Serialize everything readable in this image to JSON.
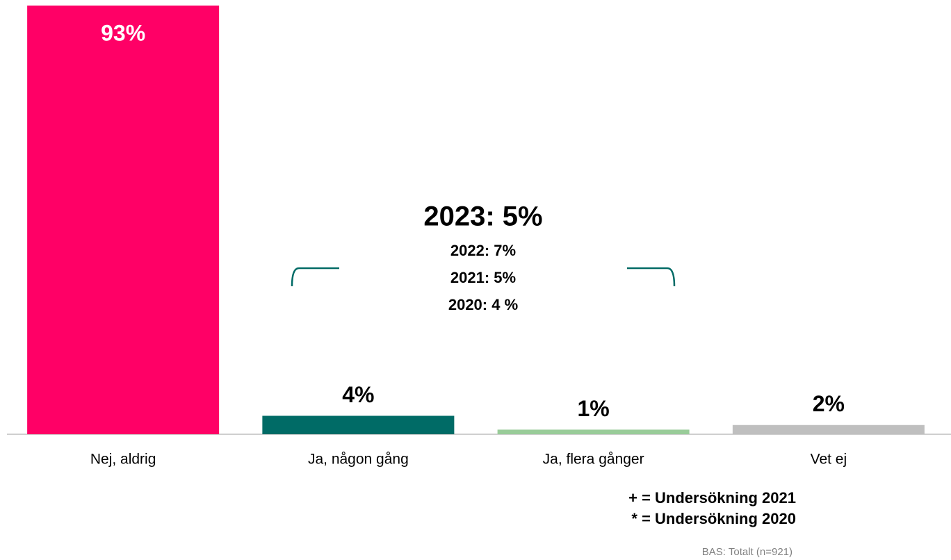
{
  "chart_data": {
    "type": "bar",
    "categories": [
      "Nej, aldrig",
      "Ja, någon gång",
      "Ja, flera gånger",
      "Vet ej"
    ],
    "values": [
      93,
      4,
      1,
      2
    ],
    "value_labels": [
      "93%",
      "4%",
      "1%",
      "2%"
    ],
    "colors": [
      "#ff0066",
      "#006b66",
      "#99cc99",
      "#bfbfbf"
    ],
    "annotations": [
      "2023: 5%",
      "2022: 7%",
      "2021: 5%",
      "2020: 4 %"
    ],
    "legend_notes": [
      "+ = Undersökning 2021",
      "* = Undersökning 2020"
    ],
    "footnote": "BAS: Totalt (n=921)"
  }
}
